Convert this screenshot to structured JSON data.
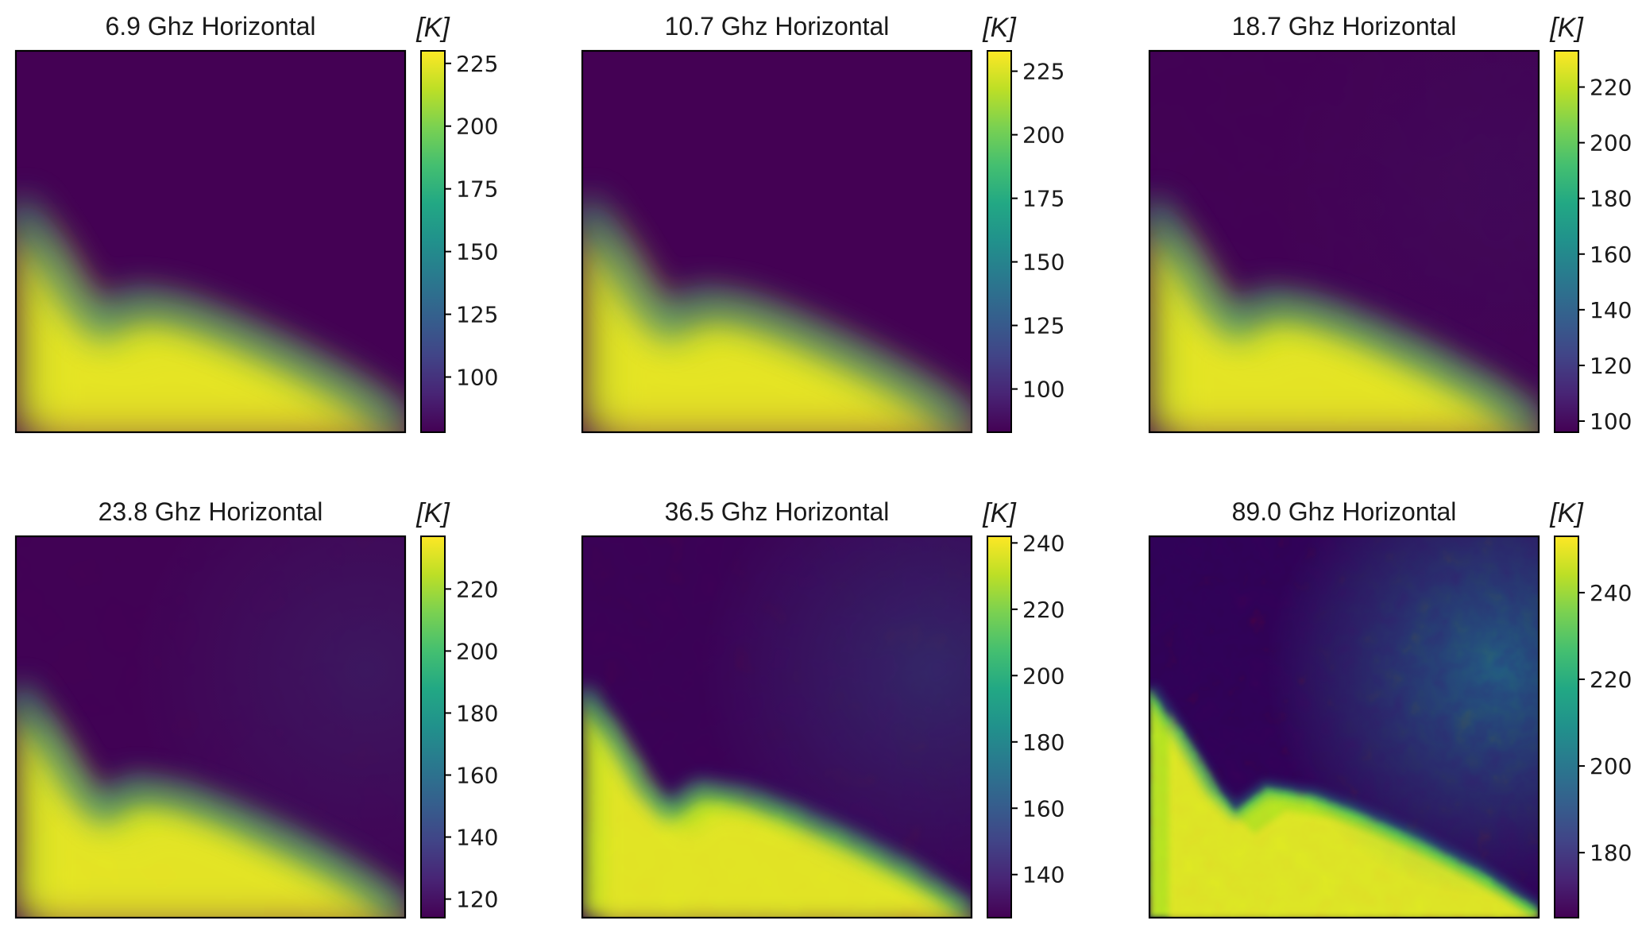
{
  "colormap": "viridis",
  "colors": {
    "background": "#ffffff",
    "viridis_low": "#440154",
    "viridis_mid": "#21918c",
    "viridis_high": "#fde725"
  },
  "chart_data": [
    {
      "type": "heatmap",
      "title": "6.9 Ghz Horizontal",
      "colorbar_label": "[K]",
      "colorbar_range": [
        78,
        230
      ],
      "colorbar_ticks": [
        100,
        125,
        150,
        175,
        200,
        225
      ],
      "field": {
        "smooth": 1.0,
        "noise": 0.0,
        "mix": 0.85,
        "edge": [
          0.46,
          0.75,
          0.95,
          1.0
        ],
        "tail": [
          0.15,
          0.02
        ],
        "rest": [
          0.8,
          1.0,
          1.0
        ]
      },
      "axes_ticks": "none",
      "grid": false
    },
    {
      "type": "heatmap",
      "title": "10.7 Ghz Horizontal",
      "colorbar_label": "[K]",
      "colorbar_range": [
        83,
        233
      ],
      "colorbar_ticks": [
        100,
        125,
        150,
        175,
        200,
        225
      ],
      "field": {
        "smooth": 1.0,
        "noise": 0.0,
        "mix": 0.85,
        "edge": [
          0.44,
          0.73,
          0.95,
          1.0
        ],
        "tail": [
          0.17,
          0.02
        ],
        "rest": [
          0.8,
          1.0,
          1.0
        ]
      },
      "axes_ticks": "none",
      "grid": false
    },
    {
      "type": "heatmap",
      "title": "18.7 Ghz Horizontal",
      "colorbar_label": "[K]",
      "colorbar_range": [
        96,
        233
      ],
      "colorbar_ticks": [
        100,
        120,
        140,
        160,
        180,
        200,
        220
      ],
      "field": {
        "smooth": 0.9,
        "noise": 0.05,
        "mix": 0.85,
        "edge": [
          0.44,
          0.73,
          0.95,
          1.0
        ],
        "tail": [
          0.2,
          0.06
        ],
        "rest": [
          0.8,
          1.0,
          1.0
        ]
      },
      "axes_ticks": "none",
      "grid": false
    },
    {
      "type": "heatmap",
      "title": "23.8 Ghz Horizontal",
      "colorbar_label": "[K]",
      "colorbar_range": [
        114,
        237
      ],
      "colorbar_ticks": [
        120,
        140,
        160,
        180,
        200,
        220
      ],
      "field": {
        "smooth": 0.8,
        "noise": 0.08,
        "mix": 0.8,
        "edge": [
          0.42,
          0.72,
          0.95,
          1.0
        ],
        "tail": [
          0.25,
          0.18
        ],
        "rest": [
          0.8,
          1.0,
          1.0
        ]
      },
      "axes_ticks": "none",
      "grid": false
    },
    {
      "type": "heatmap",
      "title": "36.5 Ghz Horizontal",
      "colorbar_label": "[K]",
      "colorbar_range": [
        127,
        242
      ],
      "colorbar_ticks": [
        140,
        160,
        180,
        200,
        220,
        240
      ],
      "field": {
        "smooth": 0.35,
        "noise": 0.22,
        "mix": 0.75,
        "edge": [
          0.38,
          0.68,
          0.95,
          1.0
        ],
        "tail": [
          0.3,
          0.3
        ],
        "rest": [
          0.8,
          1.0,
          1.0
        ]
      },
      "axes_ticks": "none",
      "grid": false
    },
    {
      "type": "heatmap",
      "title": "89.0 Ghz Horizontal",
      "colorbar_label": "[K]",
      "colorbar_range": [
        165,
        253
      ],
      "colorbar_ticks": [
        180,
        200,
        220,
        240
      ],
      "field": {
        "smooth": 0.0,
        "noise": 0.45,
        "mix": 0.55,
        "edge": [
          0.15,
          0.55,
          0.85,
          1.0
        ],
        "tail": [
          0.55,
          0.7
        ],
        "rest": [
          0.6,
          0.85,
          0.9
        ]
      },
      "axes_ticks": "none",
      "grid": false
    }
  ]
}
